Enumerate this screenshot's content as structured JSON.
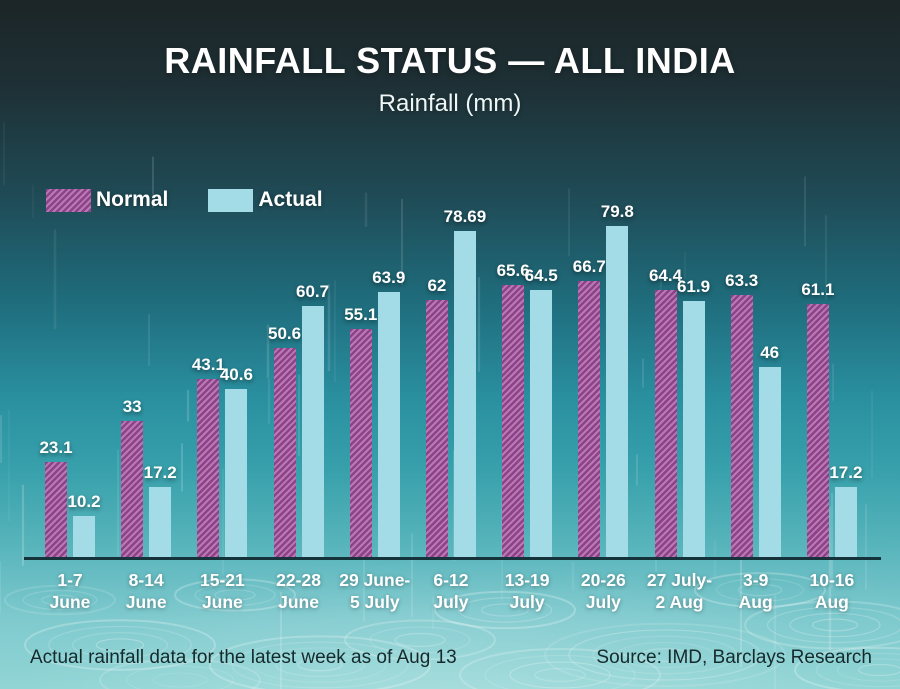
{
  "title": "RAINFALL STATUS — ALL INDIA",
  "subtitle": "Rainfall (mm)",
  "legend": {
    "normal_label": "Normal",
    "actual_label": "Actual"
  },
  "footer": {
    "note": "Actual rainfall data for the latest week as of Aug 13",
    "source": "Source: IMD, Barclays Research"
  },
  "colors": {
    "normal_base": "#8c4388",
    "normal_stripe": "#ba79b5",
    "actual": "#a3dce6",
    "axis": "#14333a",
    "text_light": "#ffffff",
    "text_dark": "#152a2c",
    "background_top": "#1c2527",
    "background_mid": "#2a90a0",
    "background_bottom": "#92d5d5"
  },
  "chart_data": {
    "type": "bar",
    "title": "RAINFALL STATUS — ALL INDIA",
    "subtitle": "Rainfall (mm)",
    "ylabel": "Rainfall (mm)",
    "xlabel": "",
    "ylim": [
      0,
      83
    ],
    "grid": false,
    "legend_position": "top-left",
    "categories": [
      "1-7\nJune",
      "8-14\nJune",
      "15-21\nJune",
      "22-28\nJune",
      "29 June-\n5 July",
      "6-12\nJuly",
      "13-19\nJuly",
      "20-26\nJuly",
      "27 July-\n2 Aug",
      "3-9\nAug",
      "10-16\nAug"
    ],
    "series": [
      {
        "name": "Normal",
        "values": [
          23.1,
          33,
          43.1,
          50.6,
          55.1,
          62,
          65.6,
          66.7,
          64.4,
          63.3,
          61.1
        ]
      },
      {
        "name": "Actual",
        "values": [
          10.2,
          17.2,
          40.6,
          60.7,
          63.9,
          78.69,
          64.5,
          79.8,
          61.9,
          46,
          17.2
        ]
      }
    ]
  }
}
